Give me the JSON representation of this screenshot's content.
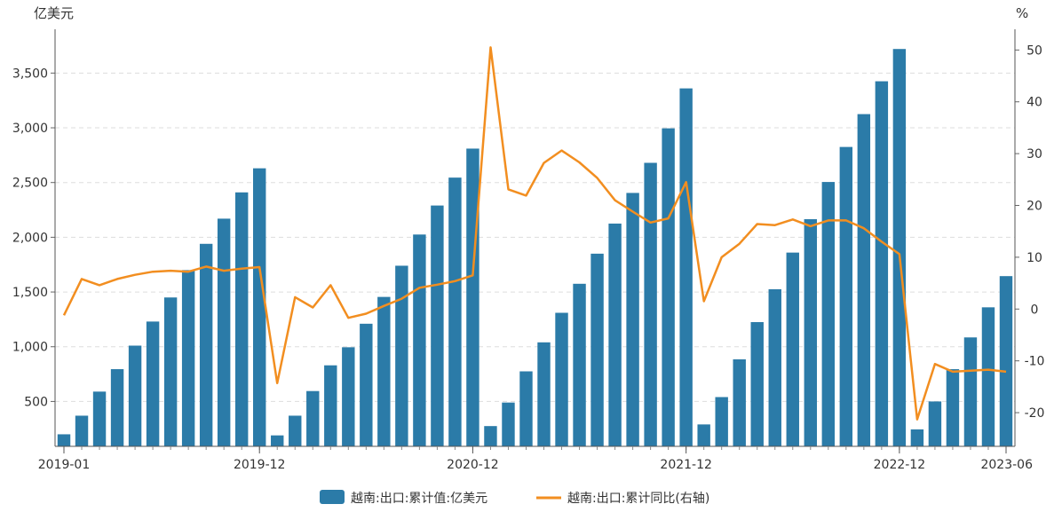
{
  "chart_data": {
    "type": "bar",
    "left_unit": "亿美元",
    "right_unit": "%",
    "x": [
      "2019-01",
      "2019-02",
      "2019-03",
      "2019-04",
      "2019-05",
      "2019-06",
      "2019-07",
      "2019-08",
      "2019-09",
      "2019-10",
      "2019-11",
      "2019-12",
      "2020-01",
      "2020-02",
      "2020-03",
      "2020-04",
      "2020-05",
      "2020-06",
      "2020-07",
      "2020-08",
      "2020-09",
      "2020-10",
      "2020-11",
      "2020-12",
      "2021-01",
      "2021-02",
      "2021-03",
      "2021-04",
      "2021-05",
      "2021-06",
      "2021-07",
      "2021-08",
      "2021-09",
      "2021-10",
      "2021-11",
      "2021-12",
      "2022-01",
      "2022-02",
      "2022-03",
      "2022-04",
      "2022-05",
      "2022-06",
      "2022-07",
      "2022-08",
      "2022-09",
      "2022-10",
      "2022-11",
      "2022-12",
      "2023-01",
      "2023-02",
      "2023-03",
      "2023-04",
      "2023-05",
      "2023-06"
    ],
    "x_tick_labels": [
      "2019-01",
      "2019-12",
      "2020-12",
      "2021-12",
      "2022-12",
      "2023-06"
    ],
    "y_left": {
      "range": [
        90,
        3900
      ],
      "ticks": [
        500,
        1000,
        1500,
        2000,
        2500,
        3000,
        3500
      ],
      "tick_labels": [
        "500",
        "1,000",
        "1,500",
        "2,000",
        "2,500",
        "3,000",
        "3,500"
      ]
    },
    "y_right": {
      "range": [
        -26.5,
        54
      ],
      "ticks": [
        -20,
        -10,
        0,
        10,
        20,
        30,
        40,
        50
      ],
      "tick_labels": [
        "-20",
        "-10",
        "0",
        "10",
        "20",
        "30",
        "40",
        "50"
      ]
    },
    "grid": true,
    "legend_position": "bottom",
    "series": [
      {
        "name": "越南:出口:累计值:亿美元",
        "type": "bar",
        "axis": "left",
        "color": "#2b7ba8",
        "values": [
          200,
          370,
          590,
          795,
          1010,
          1230,
          1450,
          1700,
          1940,
          2170,
          2410,
          2630,
          190,
          370,
          595,
          830,
          995,
          1210,
          1455,
          1740,
          2025,
          2290,
          2545,
          2810,
          275,
          490,
          775,
          1040,
          1310,
          1575,
          1850,
          2125,
          2405,
          2680,
          2995,
          3360,
          290,
          540,
          885,
          1225,
          1525,
          1860,
          2165,
          2505,
          2825,
          3125,
          3425,
          3720,
          245,
          500,
          795,
          1085,
          1360,
          1645
        ]
      },
      {
        "name": "越南:出口:累计同比(右轴)",
        "type": "line",
        "axis": "right",
        "color": "#f28e20",
        "values": [
          -1.2,
          5.8,
          4.6,
          5.8,
          6.6,
          7.2,
          7.4,
          7.2,
          8.2,
          7.4,
          7.8,
          8.1,
          -14.3,
          2.3,
          0.3,
          4.6,
          -1.7,
          -0.9,
          0.6,
          2.0,
          4.1,
          4.7,
          5.4,
          6.5,
          50.5,
          23.1,
          21.9,
          28.2,
          30.6,
          28.3,
          25.3,
          21.0,
          18.8,
          16.7,
          17.5,
          24.5,
          1.5,
          10.0,
          12.6,
          16.4,
          16.2,
          17.3,
          16.0,
          17.1,
          17.1,
          15.6,
          13.0,
          10.6,
          -21.3,
          -10.6,
          -12.1,
          -11.9,
          -11.7,
          -12.1
        ]
      }
    ]
  }
}
